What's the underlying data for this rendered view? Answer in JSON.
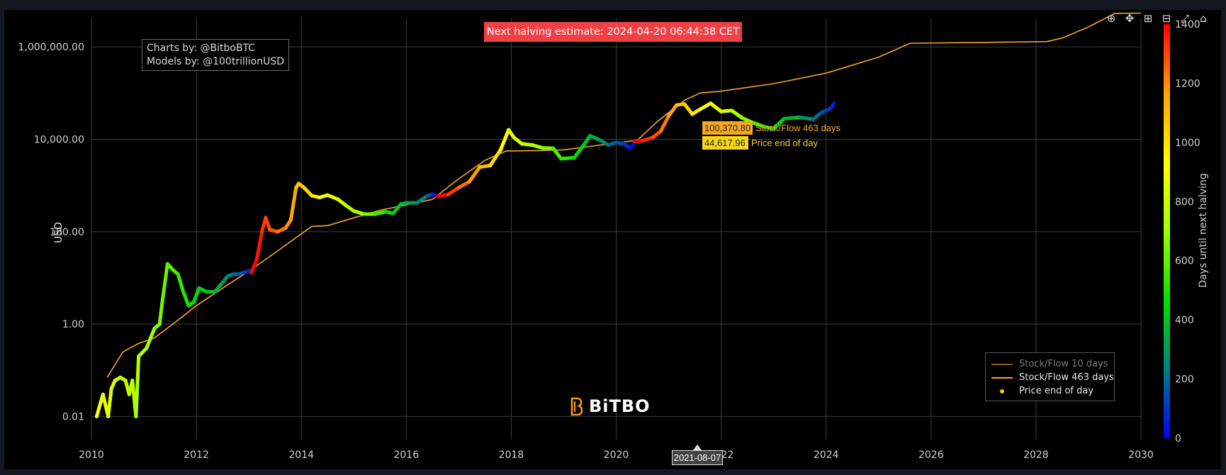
{
  "credits": {
    "line1": "Charts by: @BitboBTC",
    "line2": "Models by: @100trillionUSD"
  },
  "halving_banner": "Next halving estimate: 2024-04-20 06:44:38 CET",
  "logo": {
    "text": "BiTBO",
    "icon": "bitbo-b-icon",
    "color": "#f7931a"
  },
  "hover": {
    "date": "2021-08-07",
    "sf_value": "100,370.80",
    "sf_label": "Stock/Flow 463 days",
    "price_value": "44,617.96",
    "price_label": "Price end of day"
  },
  "legend": {
    "items": [
      {
        "label": "Stock/Flow 10 days",
        "color": "#8a5a1a"
      },
      {
        "label": "Stock/Flow 463 days",
        "color": "#f5a623"
      },
      {
        "label": "Price end of day",
        "color": "#f5c518"
      }
    ]
  },
  "modebar": [
    {
      "name": "zoom-icon",
      "glyph": "⊕"
    },
    {
      "name": "pan-icon",
      "glyph": "✥"
    },
    {
      "name": "zoom-in-icon",
      "glyph": "⊞"
    },
    {
      "name": "zoom-out-icon",
      "glyph": "⊟"
    },
    {
      "name": "autoscale-icon",
      "glyph": "⤢"
    },
    {
      "name": "reset-axes-icon",
      "glyph": "⌂"
    }
  ],
  "chart_data": {
    "type": "scatter",
    "yscale": "log",
    "xlim": [
      2010,
      2030
    ],
    "ylim_exp": [
      -2.5,
      6.8
    ],
    "ylabel": "USD",
    "xticks": [
      2010,
      2012,
      2014,
      2016,
      2018,
      2020,
      2022,
      2024,
      2026,
      2028,
      2030
    ],
    "xtick_labels": [
      "2010",
      "2012",
      "2014",
      "2016",
      "2018",
      "2020",
      "2022",
      "2024",
      "2026",
      "2028",
      "2030"
    ],
    "yticks": [
      0.01,
      1,
      100,
      10000,
      1000000
    ],
    "ytick_labels": [
      "0.01",
      "1.00",
      "100.00",
      "10,000.00",
      "1,000,000.00"
    ],
    "colorbar": {
      "title": "Days until next halving",
      "range": [
        0,
        1400
      ],
      "ticks": [
        0,
        200,
        400,
        600,
        800,
        1000,
        1200,
        1400
      ],
      "colorscale": [
        "#0000ff",
        "#008080",
        "#00e000",
        "#a0ff00",
        "#ffff00",
        "#ffa500",
        "#ff0000"
      ]
    },
    "series": [
      {
        "name": "Stock/Flow 463 days",
        "kind": "line",
        "color": "#f5a623",
        "points": [
          [
            2010.3,
            0.07
          ],
          [
            2010.6,
            0.25
          ],
          [
            2010.9,
            0.38
          ],
          [
            2011.2,
            0.5
          ],
          [
            2011.6,
            1.1
          ],
          [
            2012.0,
            2.5
          ],
          [
            2012.5,
            6
          ],
          [
            2013.0,
            14
          ],
          [
            2013.5,
            35
          ],
          [
            2014.0,
            90
          ],
          [
            2014.2,
            130
          ],
          [
            2014.5,
            135
          ],
          [
            2015.0,
            200
          ],
          [
            2015.5,
            290
          ],
          [
            2016.0,
            380
          ],
          [
            2016.5,
            500
          ],
          [
            2017.0,
            1400
          ],
          [
            2017.5,
            3500
          ],
          [
            2017.9,
            5600
          ],
          [
            2018.5,
            5700
          ],
          [
            2019.0,
            5900
          ],
          [
            2019.5,
            7000
          ],
          [
            2020.0,
            8300
          ],
          [
            2020.4,
            9500
          ],
          [
            2020.8,
            25000
          ],
          [
            2021.3,
            70000
          ],
          [
            2021.6,
            100370.8
          ],
          [
            2022.0,
            110000
          ],
          [
            2023.0,
            160000
          ],
          [
            2024.0,
            270000
          ],
          [
            2025.0,
            600000
          ],
          [
            2025.6,
            1200000
          ],
          [
            2026.5,
            1230000
          ],
          [
            2028.2,
            1300000
          ],
          [
            2028.5,
            1550000
          ],
          [
            2029.0,
            2700000
          ],
          [
            2029.5,
            5300000
          ],
          [
            2030.0,
            5400000
          ]
        ]
      },
      {
        "name": "Price end of day",
        "kind": "markers",
        "note": "colored by days until next halving",
        "points": [
          [
            2010.1,
            0.01,
            900
          ],
          [
            2010.22,
            0.03,
            880
          ],
          [
            2010.32,
            0.01,
            860
          ],
          [
            2010.38,
            0.04,
            850
          ],
          [
            2010.45,
            0.06,
            830
          ],
          [
            2010.55,
            0.07,
            800
          ],
          [
            2010.65,
            0.06,
            780
          ],
          [
            2010.72,
            0.03,
            770
          ],
          [
            2010.78,
            0.06,
            760
          ],
          [
            2010.85,
            0.01,
            740
          ],
          [
            2010.9,
            0.2,
            730
          ],
          [
            2011.05,
            0.3,
            700
          ],
          [
            2011.2,
            0.8,
            660
          ],
          [
            2011.3,
            1.0,
            640
          ],
          [
            2011.35,
            3,
            620
          ],
          [
            2011.45,
            20,
            600
          ],
          [
            2011.55,
            15,
            570
          ],
          [
            2011.65,
            12,
            540
          ],
          [
            2011.75,
            5,
            510
          ],
          [
            2011.85,
            2.5,
            480
          ],
          [
            2011.95,
            3,
            460
          ],
          [
            2012.05,
            6,
            430
          ],
          [
            2012.2,
            5,
            390
          ],
          [
            2012.35,
            5,
            340
          ],
          [
            2012.5,
            8,
            280
          ],
          [
            2012.6,
            11,
            240
          ],
          [
            2012.7,
            12,
            200
          ],
          [
            2012.8,
            12,
            160
          ],
          [
            2012.9,
            13,
            120
          ],
          [
            2013.0,
            14,
            60
          ],
          [
            2013.05,
            13,
            1400
          ],
          [
            2013.15,
            25,
            1370
          ],
          [
            2013.25,
            100,
            1330
          ],
          [
            2013.32,
            200,
            1310
          ],
          [
            2013.4,
            110,
            1280
          ],
          [
            2013.55,
            100,
            1240
          ],
          [
            2013.7,
            120,
            1200
          ],
          [
            2013.8,
            180,
            1160
          ],
          [
            2013.9,
            900,
            1100
          ],
          [
            2013.95,
            1100,
            1080
          ],
          [
            2014.05,
            900,
            1040
          ],
          [
            2014.2,
            600,
            990
          ],
          [
            2014.35,
            550,
            940
          ],
          [
            2014.5,
            620,
            880
          ],
          [
            2014.7,
            500,
            820
          ],
          [
            2014.85,
            370,
            770
          ],
          [
            2015.0,
            280,
            720
          ],
          [
            2015.2,
            240,
            640
          ],
          [
            2015.4,
            240,
            560
          ],
          [
            2015.6,
            270,
            480
          ],
          [
            2015.75,
            250,
            420
          ],
          [
            2015.9,
            400,
            360
          ],
          [
            2016.0,
            420,
            320
          ],
          [
            2016.2,
            420,
            240
          ],
          [
            2016.4,
            600,
            160
          ],
          [
            2016.5,
            650,
            50
          ],
          [
            2016.6,
            580,
            1400
          ],
          [
            2016.8,
            640,
            1320
          ],
          [
            2017.0,
            900,
            1250
          ],
          [
            2017.2,
            1200,
            1180
          ],
          [
            2017.4,
            2500,
            1100
          ],
          [
            2017.6,
            2700,
            1020
          ],
          [
            2017.8,
            6000,
            940
          ],
          [
            2017.95,
            16000,
            880
          ],
          [
            2018.05,
            11000,
            840
          ],
          [
            2018.2,
            8000,
            790
          ],
          [
            2018.4,
            7500,
            720
          ],
          [
            2018.6,
            6500,
            650
          ],
          [
            2018.8,
            6400,
            580
          ],
          [
            2018.95,
            3800,
            520
          ],
          [
            2019.2,
            4000,
            450
          ],
          [
            2019.4,
            8000,
            380
          ],
          [
            2019.5,
            12000,
            340
          ],
          [
            2019.7,
            9500,
            270
          ],
          [
            2019.85,
            7500,
            200
          ],
          [
            2020.0,
            8500,
            150
          ],
          [
            2020.15,
            8000,
            90
          ],
          [
            2020.25,
            6500,
            50
          ],
          [
            2020.3,
            7000,
            20
          ],
          [
            2020.35,
            9000,
            1400
          ],
          [
            2020.5,
            9300,
            1350
          ],
          [
            2020.7,
            11000,
            1290
          ],
          [
            2020.85,
            15000,
            1230
          ],
          [
            2021.0,
            32000,
            1170
          ],
          [
            2021.15,
            55000,
            1110
          ],
          [
            2021.3,
            58000,
            1050
          ],
          [
            2021.45,
            35000,
            990
          ],
          [
            2021.6,
            44617.96,
            930
          ],
          [
            2021.8,
            60000,
            870
          ],
          [
            2022.0,
            40000,
            810
          ],
          [
            2022.2,
            42000,
            740
          ],
          [
            2022.4,
            29000,
            660
          ],
          [
            2022.6,
            23000,
            580
          ],
          [
            2022.8,
            19000,
            510
          ],
          [
            2023.0,
            17000,
            450
          ],
          [
            2023.2,
            28000,
            370
          ],
          [
            2023.5,
            30000,
            290
          ],
          [
            2023.75,
            27000,
            200
          ],
          [
            2023.9,
            37000,
            140
          ],
          [
            2024.0,
            42000,
            110
          ],
          [
            2024.1,
            48000,
            70
          ],
          [
            2024.15,
            60000,
            50
          ]
        ]
      }
    ]
  }
}
